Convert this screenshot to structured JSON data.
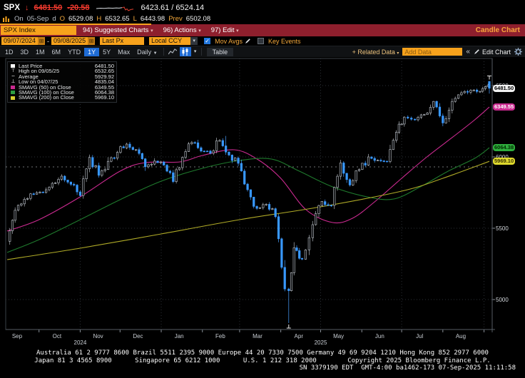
{
  "header": {
    "ticker": "SPX",
    "change_arrow": "↓",
    "last": "6481.50",
    "change": "-20.58",
    "range": "6423.61 / 6524.14",
    "session": {
      "on_label": "On",
      "date": "05-Sep",
      "d_label": "d",
      "o_label": "O",
      "open": "6529.08",
      "h_label": "H",
      "high": "6532.65",
      "l_label": "L",
      "low": "6443.98",
      "prev_label": "Prev",
      "prev": "6502.08"
    }
  },
  "menubar": {
    "security": "SPX Index",
    "items": [
      {
        "label": "94) Suggested Charts"
      },
      {
        "label": "96) Actions"
      },
      {
        "label": "97) Edit"
      }
    ],
    "title": "Candle Chart"
  },
  "controls": {
    "date_from": "09/07/2024",
    "date_to": "09/08/2025",
    "range_separator": "-",
    "field": "Last Px",
    "currency": "Local CCY",
    "mov_avgs_label": "Mov Avgs",
    "key_events_label": "Key Events",
    "periods": [
      "1D",
      "3D",
      "1M",
      "6M",
      "YTD",
      "1Y",
      "5Y",
      "Max"
    ],
    "active_period": "1Y",
    "frequency": "Daily",
    "table_label": "Table",
    "related_data_label": "+ Related Data",
    "add_data_placeholder": "Add Data",
    "collapse_icon": "«",
    "edit_chart_label": "Edit Chart"
  },
  "legend": {
    "rows": [
      {
        "marker": "square",
        "color": "#ffffff",
        "label": "Last Price",
        "value": "6481.50"
      },
      {
        "marker": "glyph",
        "glyph": "⊤",
        "label": "High on 09/05/25",
        "value": "6532.65"
      },
      {
        "marker": "glyph",
        "glyph": "╌",
        "label": "Average",
        "value": "5929.92"
      },
      {
        "marker": "glyph",
        "glyph": "⊥",
        "label": "Low on 04/07/25",
        "value": "4835.04"
      },
      {
        "marker": "square",
        "color": "#cb2a90",
        "label": "SMAVG (50)  on Close",
        "value": "6349.55"
      },
      {
        "marker": "square",
        "color": "#2f9e41",
        "label": "SMAVG (100)  on Close",
        "value": "6064.38"
      },
      {
        "marker": "square",
        "color": "#d6cf2e",
        "label": "SMAVG (200)  on Close",
        "value": "5969.10"
      }
    ]
  },
  "footer": {
    "line1": "Australia 61 2 9777 8600 Brazil 5511 2395 9000 Europe 44 20 7330 7500 Germany 49 69 9204 1210 Hong Kong 852 2977 6000",
    "line2": "Japan 81 3 4565 8900      Singapore 65 6212 1000      U.S. 1 212 318 2000        Copyright 2025 Bloomberg Finance L.P.",
    "line3": "SN 3379190 EDT  GMT-4:00 ba1462-173 07-Sep-2025 11:11:58"
  },
  "chart_data": {
    "type": "candlestick",
    "symbol": "SPX Index",
    "title": "Candle Chart",
    "start_date": "2024-09-07",
    "end_date": "2025-09-05",
    "y_axis": {
      "ticks": [
        6500,
        6000,
        5500,
        5000
      ],
      "range_top": 6650,
      "range_bottom": 4650
    },
    "x_months": [
      "Sep",
      "Oct",
      "Nov",
      "Dec",
      "Jan",
      "Feb",
      "Mar",
      "Apr",
      "May",
      "Jun",
      "Jul",
      "Aug"
    ],
    "x_years": [
      {
        "label": "2024",
        "date": "2024-11-01"
      },
      {
        "label": "2025",
        "date": "2025-05-01"
      }
    ],
    "grid_dates": [
      "2024-11-01",
      "2025-01-01",
      "2025-03-01",
      "2025-05-01",
      "2025-07-01",
      "2025-09-01"
    ],
    "last_bar": {
      "open": 6529.08,
      "high": 6532.65,
      "low": 6443.98,
      "close": 6481.5
    },
    "key_points": {
      "high": {
        "date": "2025-09-05",
        "value": 6532.65
      },
      "low": {
        "date": "2025-04-07",
        "value": 4835.04
      },
      "feb_peak": {
        "date": "2025-02-19",
        "value": 6147
      },
      "average": 5929.92
    },
    "weekly_closes": [
      [
        "2024-09-07",
        5408
      ],
      [
        "2024-09-13",
        5626
      ],
      [
        "2024-09-20",
        5703
      ],
      [
        "2024-09-27",
        5738
      ],
      [
        "2024-10-04",
        5751
      ],
      [
        "2024-10-11",
        5815
      ],
      [
        "2024-10-18",
        5865
      ],
      [
        "2024-10-25",
        5808
      ],
      [
        "2024-11-01",
        5729
      ],
      [
        "2024-11-08",
        5996
      ],
      [
        "2024-11-15",
        5871
      ],
      [
        "2024-11-22",
        5969
      ],
      [
        "2024-11-29",
        6032
      ],
      [
        "2024-12-06",
        6090
      ],
      [
        "2024-12-13",
        6051
      ],
      [
        "2024-12-20",
        5931
      ],
      [
        "2024-12-27",
        5971
      ],
      [
        "2025-01-03",
        5942
      ],
      [
        "2025-01-10",
        5827
      ],
      [
        "2025-01-17",
        5997
      ],
      [
        "2025-01-24",
        6101
      ],
      [
        "2025-01-31",
        6041
      ],
      [
        "2025-02-07",
        6026
      ],
      [
        "2025-02-14",
        6115
      ],
      [
        "2025-02-21",
        6013
      ],
      [
        "2025-02-28",
        5955
      ],
      [
        "2025-03-07",
        5770
      ],
      [
        "2025-03-14",
        5639
      ],
      [
        "2025-03-21",
        5668
      ],
      [
        "2025-03-28",
        5581
      ],
      [
        "2025-04-04",
        5074
      ],
      [
        "2025-04-07",
        5062
      ],
      [
        "2025-04-11",
        5363
      ],
      [
        "2025-04-17",
        5283
      ],
      [
        "2025-04-25",
        5525
      ],
      [
        "2025-05-02",
        5687
      ],
      [
        "2025-05-09",
        5660
      ],
      [
        "2025-05-16",
        5958
      ],
      [
        "2025-05-23",
        5803
      ],
      [
        "2025-05-30",
        5912
      ],
      [
        "2025-06-06",
        6000
      ],
      [
        "2025-06-13",
        5977
      ],
      [
        "2025-06-20",
        5968
      ],
      [
        "2025-06-27",
        6173
      ],
      [
        "2025-07-03",
        6279
      ],
      [
        "2025-07-11",
        6260
      ],
      [
        "2025-07-18",
        6297
      ],
      [
        "2025-07-25",
        6389
      ],
      [
        "2025-08-01",
        6238
      ],
      [
        "2025-08-08",
        6389
      ],
      [
        "2025-08-15",
        6450
      ],
      [
        "2025-08-22",
        6467
      ],
      [
        "2025-08-29",
        6460
      ],
      [
        "2025-09-04",
        6502
      ],
      [
        "2025-09-05",
        6481.5
      ]
    ],
    "moving_averages": [
      {
        "name": "SMAVG (50) on Close",
        "window": 50,
        "color": "#cb2a90",
        "last": 6349.55,
        "points": [
          [
            "2024-09-07",
            5480
          ],
          [
            "2024-10-01",
            5560
          ],
          [
            "2024-11-01",
            5720
          ],
          [
            "2024-12-01",
            5900
          ],
          [
            "2024-12-20",
            5960
          ],
          [
            "2025-01-15",
            5965
          ],
          [
            "2025-02-01",
            6010
          ],
          [
            "2025-02-25",
            6050
          ],
          [
            "2025-03-15",
            5980
          ],
          [
            "2025-04-01",
            5850
          ],
          [
            "2025-04-20",
            5630
          ],
          [
            "2025-05-10",
            5540
          ],
          [
            "2025-05-25",
            5570
          ],
          [
            "2025-06-10",
            5680
          ],
          [
            "2025-07-01",
            5850
          ],
          [
            "2025-07-20",
            6000
          ],
          [
            "2025-08-10",
            6150
          ],
          [
            "2025-08-25",
            6260
          ],
          [
            "2025-09-05",
            6349.55
          ]
        ]
      },
      {
        "name": "SMAVG (100) on Close",
        "window": 100,
        "color": "#1f7a2d",
        "last": 6064.38,
        "points": [
          [
            "2024-09-07",
            5330
          ],
          [
            "2024-10-01",
            5420
          ],
          [
            "2024-11-01",
            5560
          ],
          [
            "2024-12-01",
            5700
          ],
          [
            "2025-01-01",
            5830
          ],
          [
            "2025-02-01",
            5920
          ],
          [
            "2025-03-01",
            5975
          ],
          [
            "2025-03-25",
            5985
          ],
          [
            "2025-04-15",
            5900
          ],
          [
            "2025-05-10",
            5790
          ],
          [
            "2025-06-05",
            5720
          ],
          [
            "2025-06-25",
            5705
          ],
          [
            "2025-07-15",
            5790
          ],
          [
            "2025-08-05",
            5900
          ],
          [
            "2025-08-25",
            5990
          ],
          [
            "2025-09-05",
            6064.38
          ]
        ]
      },
      {
        "name": "SMAVG (200) on Close",
        "window": 200,
        "color": "#b0ab27",
        "last": 5969.1,
        "points": [
          [
            "2024-09-07",
            5280
          ],
          [
            "2024-11-01",
            5360
          ],
          [
            "2025-01-01",
            5460
          ],
          [
            "2025-03-01",
            5560
          ],
          [
            "2025-05-01",
            5650
          ],
          [
            "2025-07-01",
            5760
          ],
          [
            "2025-08-01",
            5850
          ],
          [
            "2025-09-05",
            5969.1
          ]
        ]
      }
    ],
    "price_labels": [
      {
        "text": "6481.50",
        "value": 6481.5,
        "bg": "#f2f2f2",
        "fg": "#000000"
      },
      {
        "text": "6349.55",
        "value": 6349.55,
        "bg": "#cb2a90",
        "fg": "#ffffff"
      },
      {
        "text": "6064.38",
        "value": 6064.38,
        "bg": "#2fae3d",
        "fg": "#002a00"
      },
      {
        "text": "5969.10",
        "value": 5969.1,
        "bg": "#ded92e",
        "fg": "#3a3200"
      }
    ],
    "colors": {
      "up_fill": "#0b0c0e",
      "up_stroke": "#c3c9d0",
      "down": "#3898ff"
    }
  }
}
